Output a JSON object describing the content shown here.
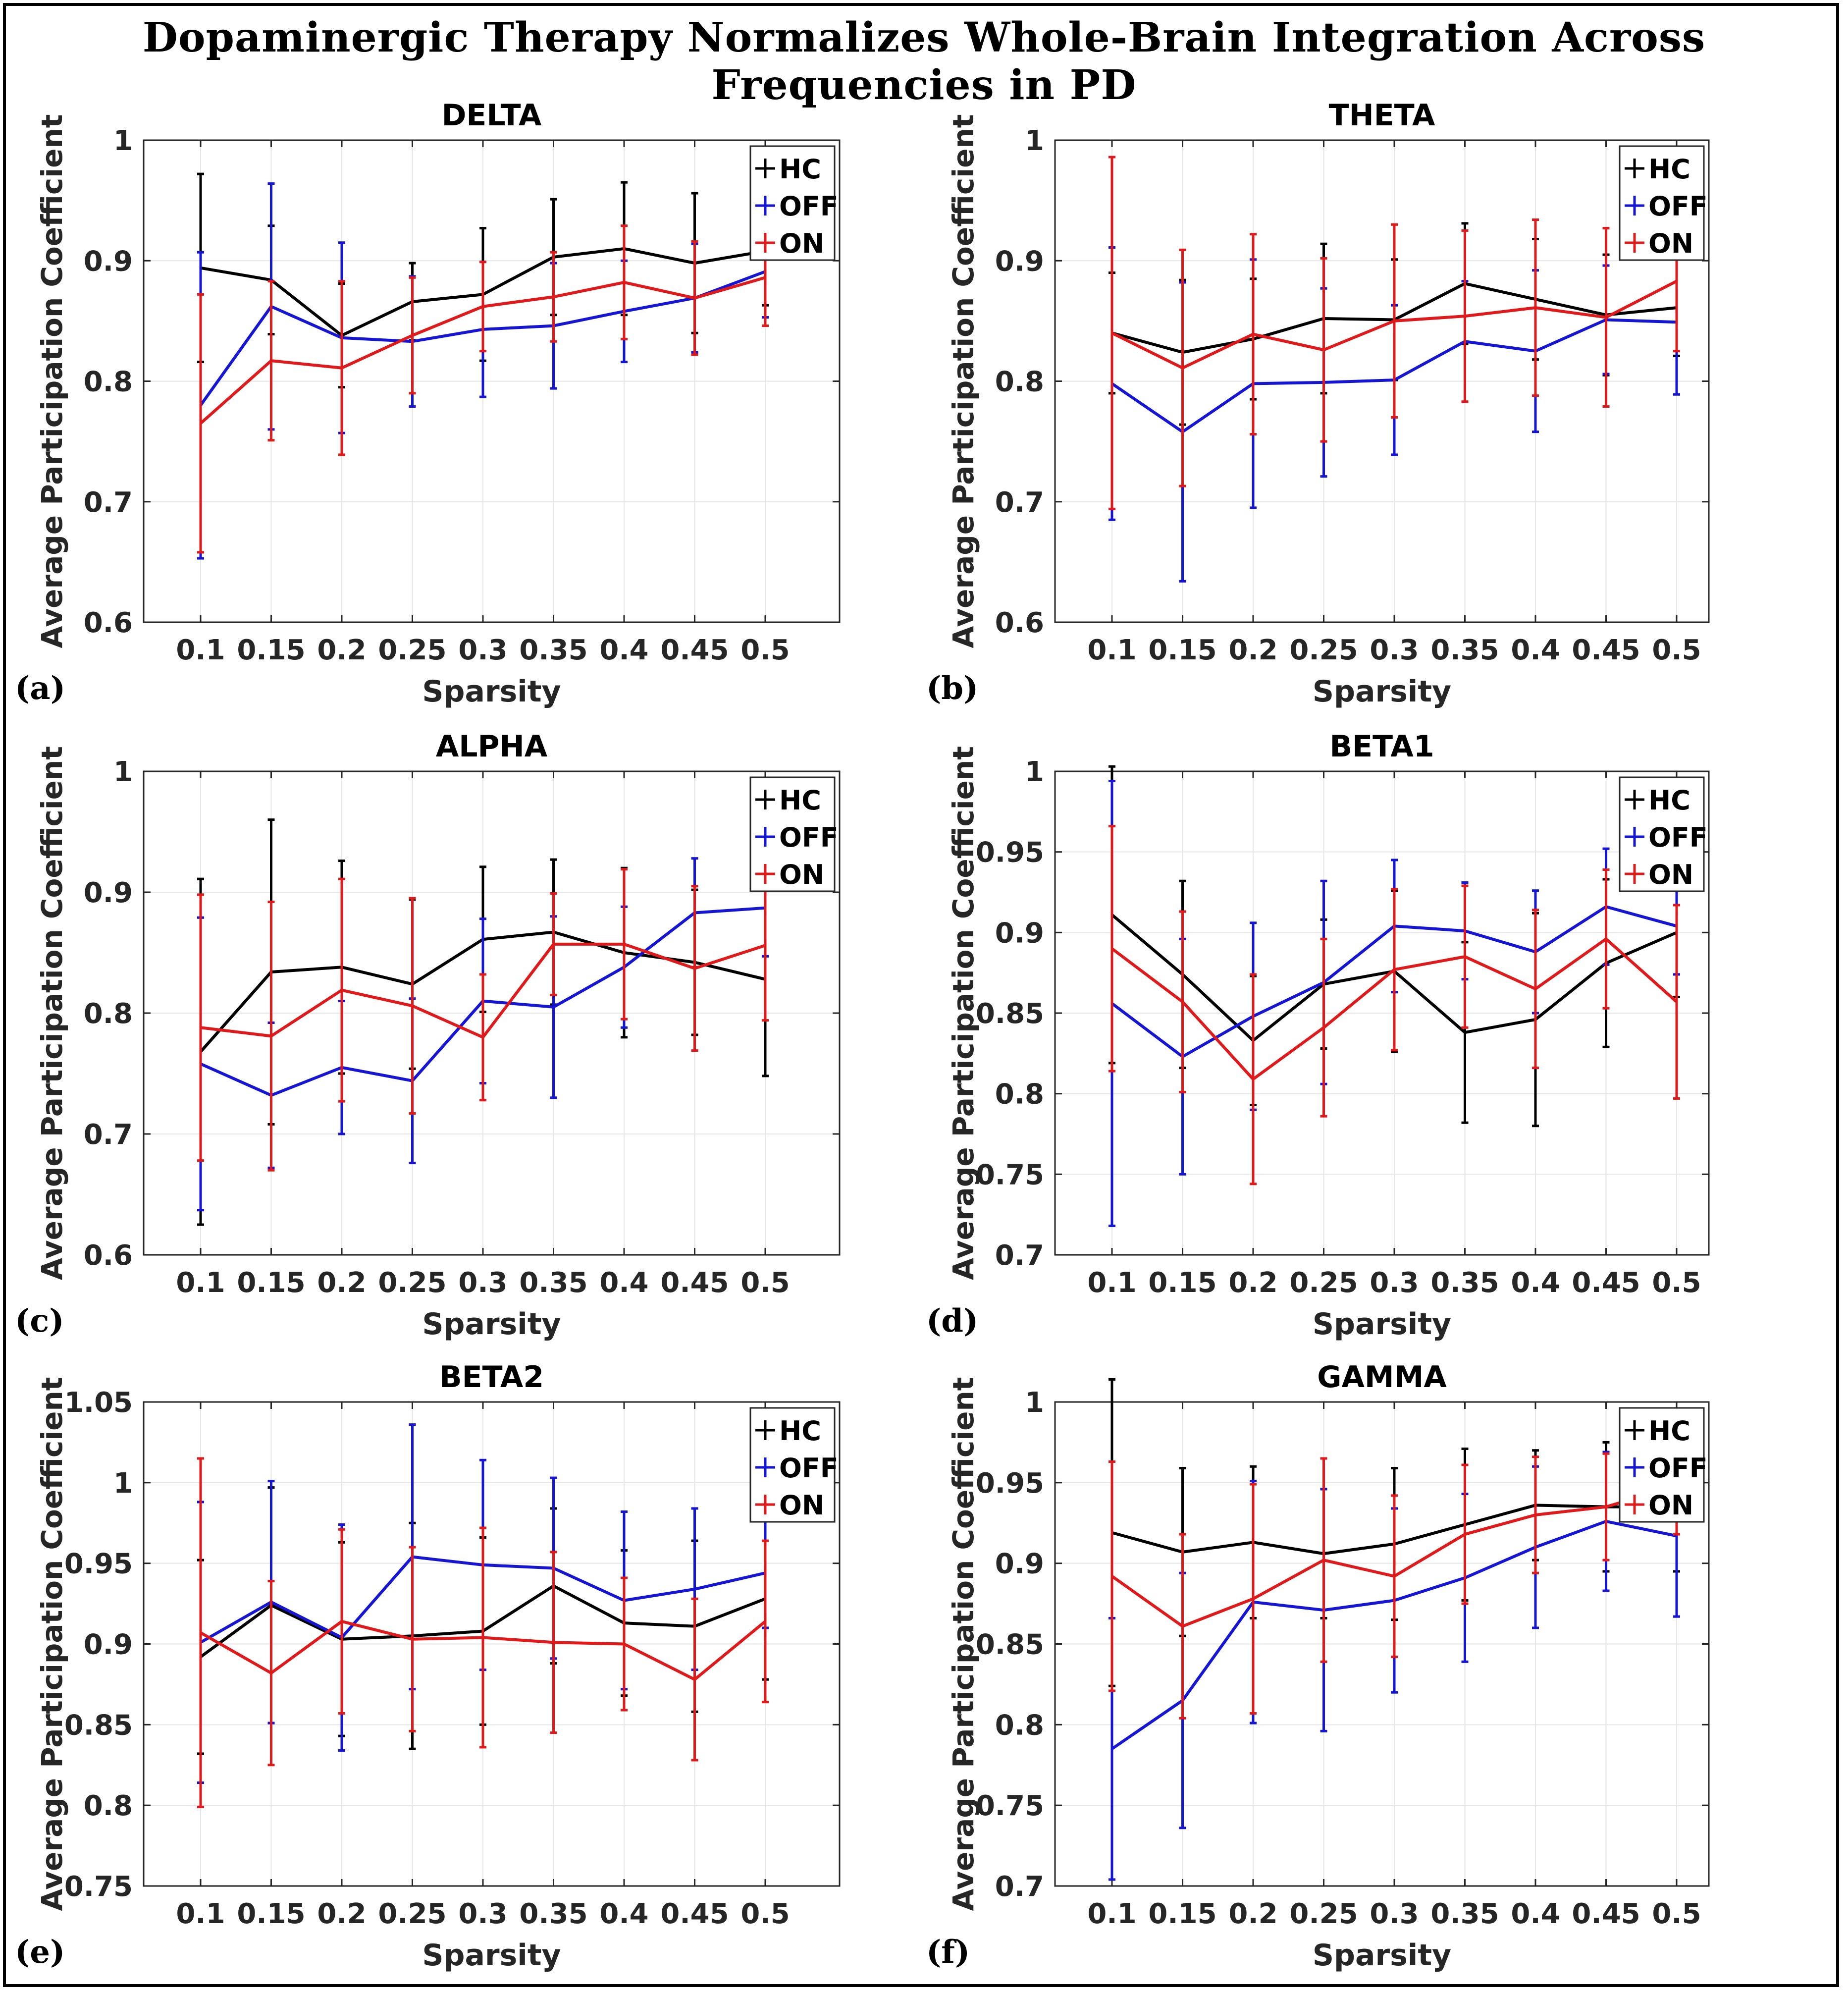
{
  "title": "Dopaminergic Therapy Normalizes Whole-Brain Integration Across Frequencies in PD",
  "colors": {
    "HC": "#000000",
    "OFF": "#1515d6",
    "ON": "#e01a1a"
  },
  "chart_data": [
    {
      "type": "line",
      "panel_label": "(a)",
      "title": "DELTA",
      "xlabel": "Sparsity",
      "ylabel": "Average Participation Coefficient",
      "categories": [
        "0.1",
        "0.15",
        "0.2",
        "0.25",
        "0.3",
        "0.35",
        "0.4",
        "0.45",
        "0.5"
      ],
      "ylim": [
        0.6,
        1.0
      ],
      "yticks": [
        0.6,
        0.7,
        0.8,
        0.9,
        1.0
      ],
      "ytick_labels": [
        "0.6",
        "0.7",
        "0.8",
        "0.9",
        "1"
      ],
      "grid": true,
      "legend": [
        "HC",
        "OFF",
        "ON"
      ],
      "series": [
        {
          "name": "HC",
          "values": [
            0.894,
            0.884,
            0.838,
            0.866,
            0.872,
            0.903,
            0.91,
            0.898,
            0.908
          ],
          "err": [
            0.078,
            0.045,
            0.043,
            0.032,
            0.055,
            0.048,
            0.055,
            0.058,
            0.045
          ]
        },
        {
          "name": "OFF",
          "values": [
            0.78,
            0.862,
            0.836,
            0.833,
            0.843,
            0.846,
            0.858,
            0.869,
            0.891
          ],
          "err": [
            0.127,
            0.102,
            0.079,
            0.054,
            0.056,
            0.052,
            0.042,
            0.045,
            0.038
          ]
        },
        {
          "name": "ON",
          "values": [
            0.765,
            0.817,
            0.811,
            0.838,
            0.862,
            0.87,
            0.882,
            0.869,
            0.886
          ],
          "err": [
            0.107,
            0.066,
            0.072,
            0.048,
            0.037,
            0.037,
            0.047,
            0.047,
            0.04
          ]
        }
      ]
    },
    {
      "type": "line",
      "panel_label": "(b)",
      "title": "THETA",
      "xlabel": "Sparsity",
      "ylabel": "Average Participation Coefficient",
      "categories": [
        "0.1",
        "0.15",
        "0.2",
        "0.25",
        "0.3",
        "0.35",
        "0.4",
        "0.45",
        "0.5"
      ],
      "ylim": [
        0.6,
        1.0
      ],
      "yticks": [
        0.6,
        0.7,
        0.8,
        0.9,
        1.0
      ],
      "ytick_labels": [
        "0.6",
        "0.7",
        "0.8",
        "0.9",
        "1"
      ],
      "grid": true,
      "legend": [
        "HC",
        "OFF",
        "ON"
      ],
      "series": [
        {
          "name": "HC",
          "values": [
            0.84,
            0.824,
            0.835,
            0.852,
            0.851,
            0.881,
            0.868,
            0.855,
            0.861
          ],
          "err": [
            0.05,
            0.06,
            0.05,
            0.062,
            0.05,
            0.05,
            0.05,
            0.05,
            0.04
          ]
        },
        {
          "name": "OFF",
          "values": [
            0.798,
            0.758,
            0.798,
            0.799,
            0.801,
            0.833,
            0.825,
            0.851,
            0.849
          ],
          "err": [
            0.113,
            0.124,
            0.103,
            0.078,
            0.062,
            0.05,
            0.067,
            0.045,
            0.06
          ]
        },
        {
          "name": "ON",
          "values": [
            0.84,
            0.811,
            0.839,
            0.826,
            0.85,
            0.854,
            0.861,
            0.853,
            0.883
          ],
          "err": [
            0.146,
            0.098,
            0.083,
            0.076,
            0.08,
            0.071,
            0.073,
            0.074,
            0.058
          ]
        }
      ]
    },
    {
      "type": "line",
      "panel_label": "(c)",
      "title": "ALPHA",
      "xlabel": "Sparsity",
      "ylabel": "Average Participation Coefficient",
      "categories": [
        "0.1",
        "0.15",
        "0.2",
        "0.25",
        "0.3",
        "0.35",
        "0.4",
        "0.45",
        "0.5"
      ],
      "ylim": [
        0.6,
        1.0
      ],
      "yticks": [
        0.6,
        0.7,
        0.8,
        0.9,
        1.0
      ],
      "ytick_labels": [
        "0.6",
        "0.7",
        "0.8",
        "0.9",
        "1"
      ],
      "grid": true,
      "legend": [
        "HC",
        "OFF",
        "ON"
      ],
      "series": [
        {
          "name": "HC",
          "values": [
            0.768,
            0.834,
            0.838,
            0.824,
            0.861,
            0.867,
            0.85,
            0.842,
            0.828
          ],
          "err": [
            0.143,
            0.126,
            0.088,
            0.07,
            0.06,
            0.06,
            0.07,
            0.06,
            0.08
          ]
        },
        {
          "name": "OFF",
          "values": [
            0.758,
            0.732,
            0.755,
            0.744,
            0.81,
            0.805,
            0.838,
            0.883,
            0.887
          ],
          "err": [
            0.121,
            0.06,
            0.055,
            0.068,
            0.068,
            0.075,
            0.05,
            0.045,
            0.04
          ]
        },
        {
          "name": "ON",
          "values": [
            0.788,
            0.781,
            0.819,
            0.806,
            0.78,
            0.857,
            0.857,
            0.837,
            0.856
          ],
          "err": [
            0.11,
            0.111,
            0.092,
            0.089,
            0.052,
            0.042,
            0.062,
            0.068,
            0.062
          ]
        }
      ]
    },
    {
      "type": "line",
      "panel_label": "(d)",
      "title": "BETA1",
      "xlabel": "Sparsity",
      "ylabel": "Average Participation Coefficient",
      "categories": [
        "0.1",
        "0.15",
        "0.2",
        "0.25",
        "0.3",
        "0.35",
        "0.4",
        "0.45",
        "0.5"
      ],
      "ylim": [
        0.7,
        1.0
      ],
      "yticks": [
        0.7,
        0.75,
        0.8,
        0.85,
        0.9,
        0.95,
        1.0
      ],
      "ytick_labels": [
        "0.7",
        "0.75",
        "0.8",
        "0.85",
        "0.9",
        "0.95",
        "1"
      ],
      "grid": true,
      "legend": [
        "HC",
        "OFF",
        "ON"
      ],
      "series": [
        {
          "name": "HC",
          "values": [
            0.911,
            0.874,
            0.833,
            0.868,
            0.876,
            0.838,
            0.846,
            0.881,
            0.9
          ],
          "err": [
            0.092,
            0.058,
            0.04,
            0.04,
            0.05,
            0.056,
            0.066,
            0.052,
            0.04
          ]
        },
        {
          "name": "OFF",
          "values": [
            0.856,
            0.823,
            0.848,
            0.869,
            0.904,
            0.901,
            0.888,
            0.916,
            0.904
          ],
          "err": [
            0.138,
            0.073,
            0.058,
            0.063,
            0.041,
            0.03,
            0.038,
            0.036,
            0.03
          ]
        },
        {
          "name": "ON",
          "values": [
            0.89,
            0.857,
            0.809,
            0.841,
            0.877,
            0.885,
            0.865,
            0.896,
            0.857
          ],
          "err": [
            0.076,
            0.056,
            0.065,
            0.055,
            0.05,
            0.044,
            0.049,
            0.043,
            0.06
          ]
        }
      ]
    },
    {
      "type": "line",
      "panel_label": "(e)",
      "title": "BETA2",
      "xlabel": "Sparsity",
      "ylabel": "Average Participation Coefficient",
      "categories": [
        "0.1",
        "0.15",
        "0.2",
        "0.25",
        "0.3",
        "0.35",
        "0.4",
        "0.45",
        "0.5"
      ],
      "ylim": [
        0.75,
        1.05
      ],
      "yticks": [
        0.75,
        0.8,
        0.85,
        0.9,
        0.95,
        1.0,
        1.05
      ],
      "ytick_labels": [
        "0.75",
        "0.8",
        "0.85",
        "0.9",
        "0.95",
        "1",
        "1.05"
      ],
      "grid": true,
      "legend": [
        "HC",
        "OFF",
        "ON"
      ],
      "series": [
        {
          "name": "HC",
          "values": [
            0.892,
            0.924,
            0.903,
            0.905,
            0.908,
            0.936,
            0.913,
            0.911,
            0.928
          ],
          "err": [
            0.06,
            0.073,
            0.06,
            0.07,
            0.058,
            0.048,
            0.045,
            0.053,
            0.05
          ]
        },
        {
          "name": "OFF",
          "values": [
            0.901,
            0.926,
            0.904,
            0.954,
            0.949,
            0.947,
            0.927,
            0.934,
            0.944
          ],
          "err": [
            0.087,
            0.075,
            0.07,
            0.082,
            0.065,
            0.056,
            0.055,
            0.05,
            0.034
          ]
        },
        {
          "name": "ON",
          "values": [
            0.907,
            0.882,
            0.914,
            0.903,
            0.904,
            0.901,
            0.9,
            0.878,
            0.914
          ],
          "err": [
            0.108,
            0.057,
            0.057,
            0.057,
            0.068,
            0.056,
            0.041,
            0.05,
            0.05
          ]
        }
      ]
    },
    {
      "type": "line",
      "panel_label": "(f)",
      "title": "GAMMA",
      "xlabel": "Sparsity",
      "ylabel": "Average Participation Coefficient",
      "categories": [
        "0.1",
        "0.15",
        "0.2",
        "0.25",
        "0.3",
        "0.35",
        "0.4",
        "0.45",
        "0.5"
      ],
      "ylim": [
        0.7,
        1.0
      ],
      "yticks": [
        0.7,
        0.75,
        0.8,
        0.85,
        0.9,
        0.95,
        1.0
      ],
      "ytick_labels": [
        "0.7",
        "0.75",
        "0.8",
        "0.85",
        "0.9",
        "0.95",
        "1"
      ],
      "grid": true,
      "legend": [
        "HC",
        "OFF",
        "ON"
      ],
      "series": [
        {
          "name": "HC",
          "values": [
            0.919,
            0.907,
            0.913,
            0.906,
            0.912,
            0.924,
            0.936,
            0.935,
            0.935
          ],
          "err": [
            0.095,
            0.052,
            0.047,
            0.04,
            0.047,
            0.047,
            0.034,
            0.04,
            0.04
          ]
        },
        {
          "name": "OFF",
          "values": [
            0.785,
            0.815,
            0.876,
            0.871,
            0.877,
            0.891,
            0.91,
            0.926,
            0.917
          ],
          "err": [
            0.081,
            0.079,
            0.075,
            0.075,
            0.057,
            0.052,
            0.05,
            0.043,
            0.05
          ]
        },
        {
          "name": "ON",
          "values": [
            0.892,
            0.861,
            0.878,
            0.902,
            0.892,
            0.918,
            0.93,
            0.935,
            0.948
          ],
          "err": [
            0.071,
            0.057,
            0.071,
            0.063,
            0.05,
            0.043,
            0.036,
            0.033,
            0.03
          ]
        }
      ]
    }
  ]
}
